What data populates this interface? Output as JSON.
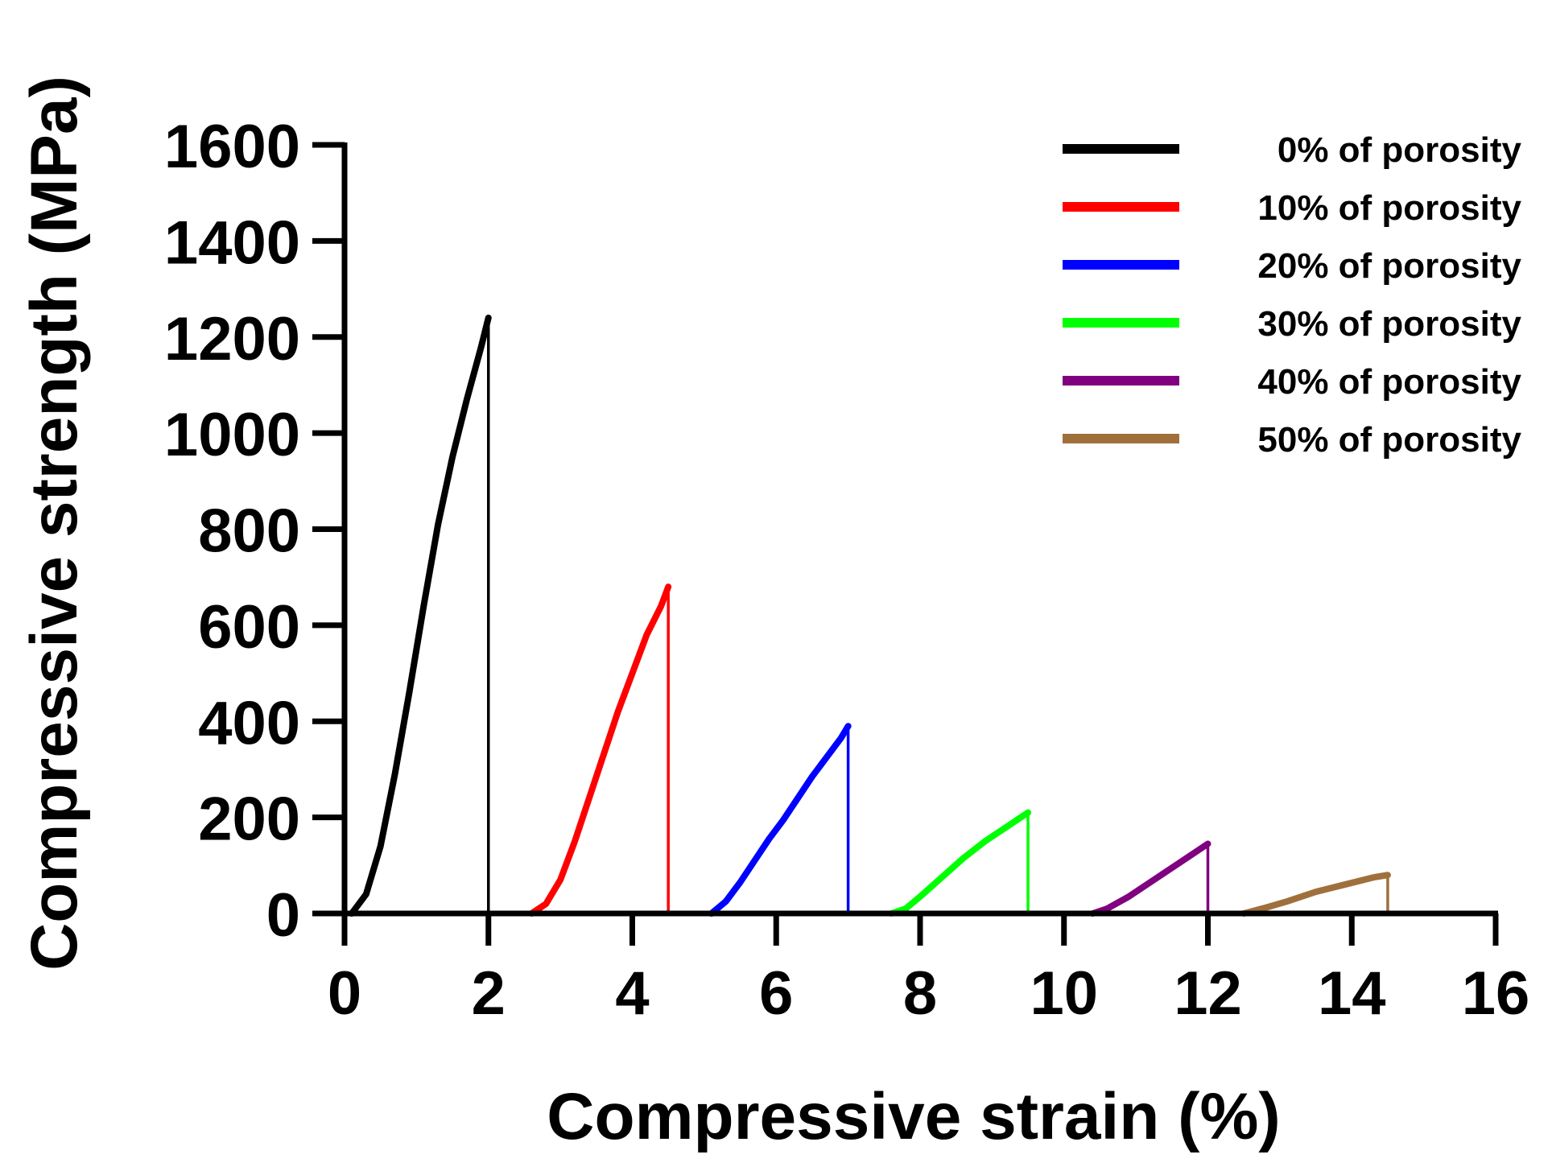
{
  "chart_data": {
    "type": "line",
    "title": "",
    "xlabel": "Compressive strain (%)",
    "ylabel": "Compressive strength (MPa)",
    "xlim": [
      0,
      16
    ],
    "ylim": [
      0,
      1600
    ],
    "xticks": [
      0,
      2,
      4,
      6,
      8,
      10,
      12,
      14,
      16
    ],
    "yticks": [
      0,
      200,
      400,
      600,
      800,
      1000,
      1200,
      1400,
      1600
    ],
    "xtick_labels": [
      "0",
      "2",
      "4",
      "6",
      "8",
      "10",
      "12",
      "14",
      "16"
    ],
    "ytick_labels": [
      "0",
      "200",
      "400",
      "600",
      "800",
      "1000",
      "1200",
      "1400",
      "1600"
    ],
    "grid": false,
    "legend_position": "top-right",
    "series": [
      {
        "name": "0% of porosity",
        "color": "#000000",
        "x": [
          0.1,
          0.3,
          0.5,
          0.7,
          0.9,
          1.1,
          1.3,
          1.5,
          1.7,
          1.9,
          2.0,
          2.0
        ],
        "y": [
          0,
          40,
          140,
          290,
          460,
          640,
          810,
          950,
          1070,
          1180,
          1240,
          0
        ]
      },
      {
        "name": "10% of porosity",
        "color": "#ff0000",
        "x": [
          2.6,
          2.8,
          3.0,
          3.2,
          3.4,
          3.6,
          3.8,
          4.0,
          4.2,
          4.4,
          4.5,
          4.5
        ],
        "y": [
          0,
          20,
          70,
          150,
          240,
          330,
          420,
          500,
          580,
          640,
          680,
          0
        ]
      },
      {
        "name": "20% of porosity",
        "color": "#0000ff",
        "x": [
          5.1,
          5.3,
          5.5,
          5.7,
          5.9,
          6.1,
          6.3,
          6.5,
          6.7,
          6.9,
          7.0,
          7.0
        ],
        "y": [
          0,
          25,
          65,
          110,
          155,
          195,
          240,
          285,
          325,
          365,
          390,
          0
        ]
      },
      {
        "name": "30% of porosity",
        "color": "#00ff00",
        "x": [
          7.6,
          7.8,
          8.0,
          8.3,
          8.6,
          8.9,
          9.2,
          9.4,
          9.5,
          9.5
        ],
        "y": [
          0,
          10,
          35,
          75,
          115,
          150,
          180,
          200,
          210,
          0
        ]
      },
      {
        "name": "40% of porosity",
        "color": "#800080",
        "x": [
          10.4,
          10.6,
          10.9,
          11.2,
          11.5,
          11.8,
          12.0,
          12.0
        ],
        "y": [
          0,
          10,
          35,
          65,
          95,
          125,
          145,
          0
        ]
      },
      {
        "name": "50% of porosity",
        "color": "#a0703c",
        "x": [
          12.5,
          12.8,
          13.1,
          13.5,
          13.9,
          14.3,
          14.5,
          14.5
        ],
        "y": [
          0,
          12,
          25,
          45,
          60,
          75,
          80,
          0
        ]
      }
    ]
  }
}
